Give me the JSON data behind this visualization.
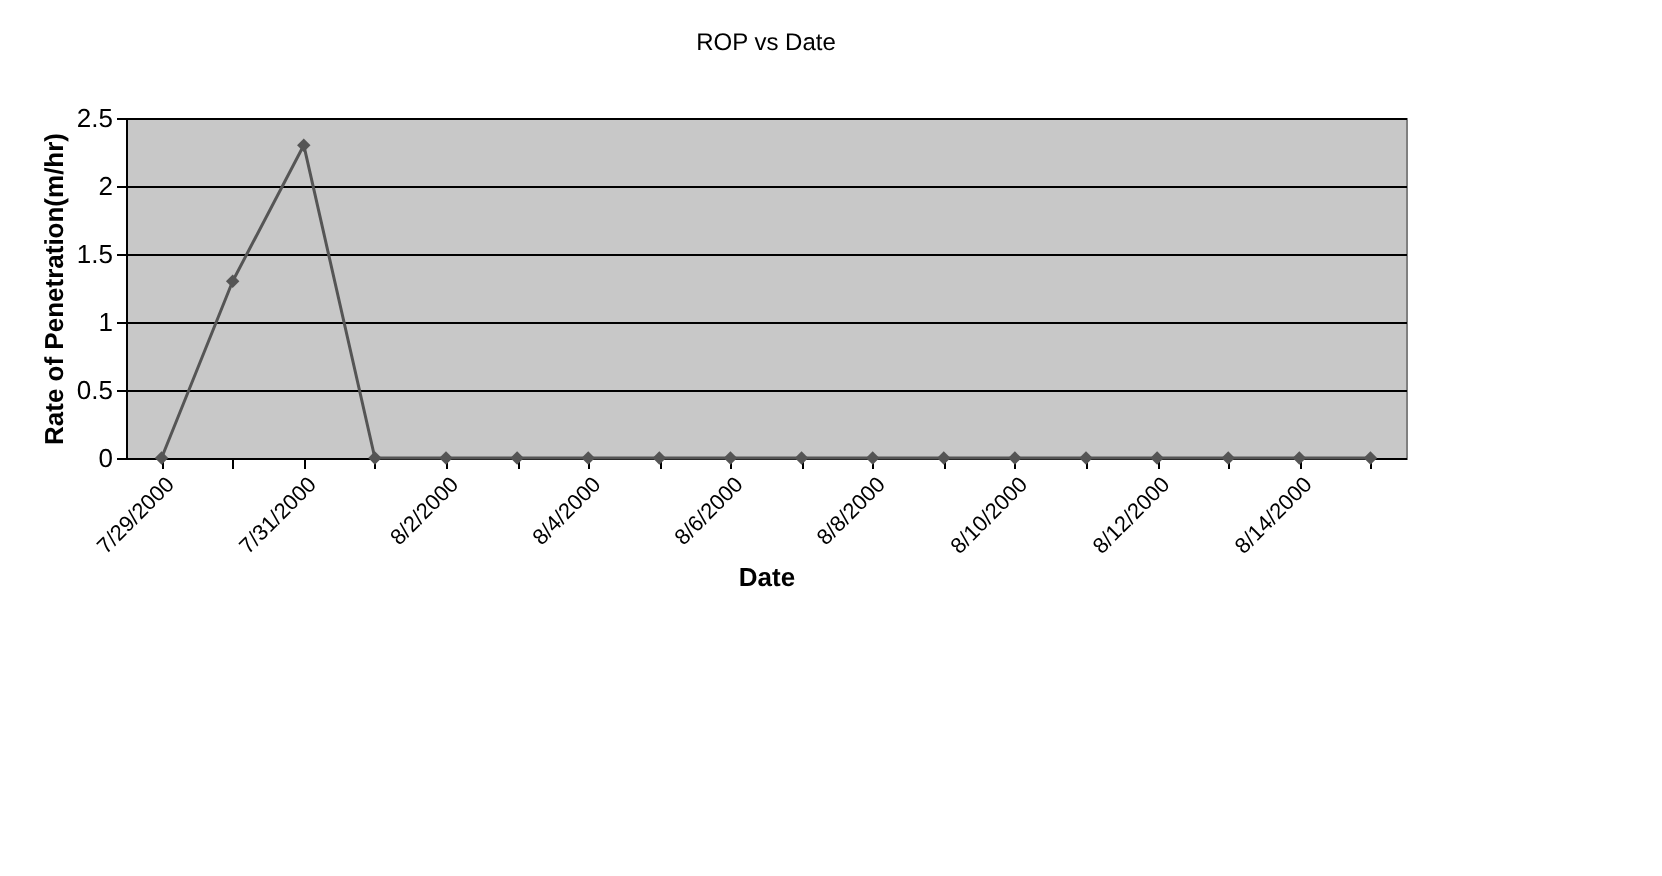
{
  "chart_data": {
    "type": "line",
    "title": "ROP vs Date",
    "xlabel": "Date",
    "ylabel": "Rate of Penetration(m/hr)",
    "categories": [
      "7/29/2000",
      null,
      "7/31/2000",
      null,
      "8/2/2000",
      null,
      "8/4/2000",
      null,
      "8/6/2000",
      null,
      "8/8/2000",
      null,
      "8/10/2000",
      null,
      "8/12/2000",
      null,
      "8/14/2000",
      null
    ],
    "series": [
      {
        "color": "#555555",
        "values": [
          0,
          1.3,
          2.3,
          0,
          0,
          0,
          0,
          0,
          0,
          0,
          0,
          0,
          0,
          0,
          0,
          0,
          0,
          0
        ]
      }
    ],
    "ylim": [
      0,
      2.5
    ],
    "yticks": [
      0,
      0.5,
      1,
      1.5,
      2,
      2.5
    ],
    "grid": "y",
    "marker": "diamond",
    "line_style": "solid"
  }
}
